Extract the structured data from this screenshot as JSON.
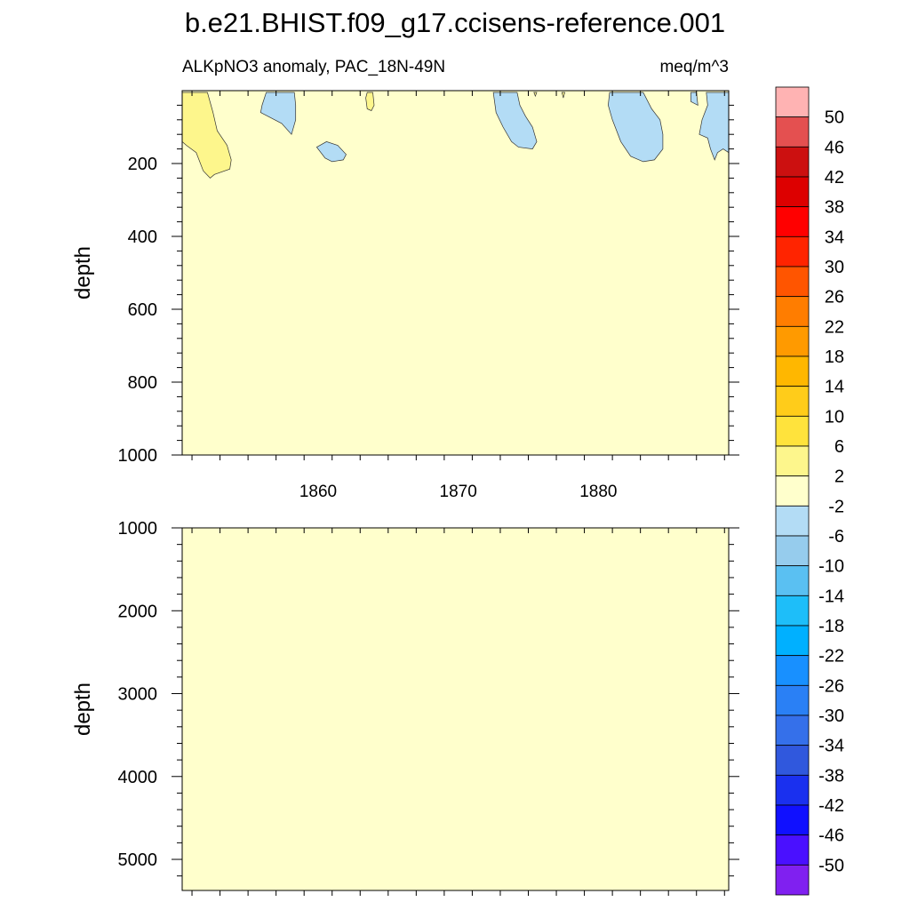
{
  "title": "b.e21.BHIST.f09_g17.ccisens-reference.001",
  "chart_data": {
    "type": "heatmap",
    "subtitle_left": "ALKpNO3 anomaly, PAC_18N-49N",
    "subtitle_right": "meq/m^3",
    "xlabel": "",
    "x_ticks": [
      "1860",
      "1870",
      "1880"
    ],
    "xlim": [
      1850.3,
      1889.3
    ],
    "background_level": "-2 to 2",
    "panels": [
      {
        "ylabel": "depth",
        "ylim": [
          0,
          1000
        ],
        "y_ticks": [
          "200",
          "400",
          "600",
          "800",
          "1000"
        ],
        "regions": [
          {
            "level": "2 to 6",
            "color": "#fdf68c",
            "points": [
              [
                1850.3,
                5
              ],
              [
                1852.1,
                5
              ],
              [
                1852.5,
                60
              ],
              [
                1852.8,
                110
              ],
              [
                1853.5,
                150
              ],
              [
                1853.8,
                190
              ],
              [
                1853.7,
                215
              ],
              [
                1852.6,
                230
              ],
              [
                1852.3,
                240
              ],
              [
                1851.8,
                220
              ],
              [
                1851.3,
                170
              ],
              [
                1850.6,
                150
              ],
              [
                1850.3,
                140
              ]
            ]
          },
          {
            "level": "2 to 6",
            "color": "#fdf68c",
            "points": [
              [
                1863.5,
                5
              ],
              [
                1863.9,
                5
              ],
              [
                1864.0,
                40
              ],
              [
                1863.8,
                55
              ],
              [
                1863.5,
                50
              ],
              [
                1863.4,
                20
              ]
            ]
          },
          {
            "level": "2 to 6",
            "color": "#fdf68c",
            "points": [
              [
                1875.4,
                5
              ],
              [
                1875.6,
                5
              ],
              [
                1875.5,
                15
              ]
            ]
          },
          {
            "level": "2 to 6",
            "color": "#fdf68c",
            "points": [
              [
                1877.4,
                5
              ],
              [
                1877.6,
                5
              ],
              [
                1877.5,
                20
              ]
            ]
          },
          {
            "level": "2 to 6",
            "color": "#fdf68c",
            "points": [
              [
                1886.8,
                5
              ],
              [
                1887.0,
                5
              ],
              [
                1886.9,
                18
              ]
            ]
          },
          {
            "level": "-6 to -2",
            "color": "#b3dcf5",
            "points": [
              [
                1856.3,
                5
              ],
              [
                1858.3,
                5
              ],
              [
                1858.4,
                40
              ],
              [
                1858.4,
                80
              ],
              [
                1858.1,
                120
              ],
              [
                1857.4,
                90
              ],
              [
                1856.4,
                70
              ],
              [
                1855.9,
                60
              ],
              [
                1856.0,
                40
              ]
            ]
          },
          {
            "level": "-6 to -2",
            "color": "#b3dcf5",
            "points": [
              [
                1859.9,
                155
              ],
              [
                1860.6,
                140
              ],
              [
                1861.4,
                150
              ],
              [
                1862.0,
                175
              ],
              [
                1861.8,
                190
              ],
              [
                1861.0,
                195
              ],
              [
                1860.5,
                185
              ]
            ]
          },
          {
            "level": "-6 to -2",
            "color": "#b3dcf5",
            "points": [
              [
                1872.5,
                5
              ],
              [
                1874.2,
                5
              ],
              [
                1874.4,
                40
              ],
              [
                1874.8,
                70
              ],
              [
                1875.3,
                100
              ],
              [
                1875.6,
                140
              ],
              [
                1875.3,
                160
              ],
              [
                1874.3,
                155
              ],
              [
                1873.8,
                140
              ],
              [
                1873.2,
                100
              ],
              [
                1872.7,
                60
              ]
            ]
          },
          {
            "level": "-6 to -2",
            "color": "#b3dcf5",
            "points": [
              [
                1880.8,
                5
              ],
              [
                1883.2,
                5
              ],
              [
                1883.8,
                50
              ],
              [
                1884.4,
                80
              ],
              [
                1884.6,
                120
              ],
              [
                1884.6,
                160
              ],
              [
                1884.0,
                190
              ],
              [
                1883.2,
                195
              ],
              [
                1882.3,
                180
              ],
              [
                1881.6,
                140
              ],
              [
                1881.0,
                80
              ],
              [
                1880.7,
                40
              ]
            ]
          },
          {
            "level": "-6 to -2",
            "color": "#b3dcf5",
            "points": [
              [
                1887.7,
                5
              ],
              [
                1889.3,
                5
              ],
              [
                1889.3,
                170
              ],
              [
                1888.9,
                160
              ],
              [
                1888.5,
                170
              ],
              [
                1888.3,
                190
              ],
              [
                1888.0,
                160
              ],
              [
                1887.8,
                130
              ],
              [
                1887.2,
                120
              ],
              [
                1887.4,
                80
              ],
              [
                1887.8,
                40
              ]
            ]
          },
          {
            "level": "-6 to -2",
            "color": "#b3dcf5",
            "points": [
              [
                1886.6,
                5
              ],
              [
                1887.0,
                5
              ],
              [
                1887.1,
                40
              ],
              [
                1886.6,
                30
              ]
            ]
          }
        ]
      },
      {
        "ylabel": "depth",
        "ylim": [
          1000,
          5375
        ],
        "y_ticks": [
          "1000",
          "2000",
          "3000",
          "4000",
          "5000"
        ],
        "regions": []
      }
    ],
    "colorbar": {
      "labels": [
        "50",
        "46",
        "42",
        "38",
        "34",
        "30",
        "26",
        "22",
        "18",
        "14",
        "10",
        "6",
        "2",
        "-2",
        "-6",
        "-10",
        "-14",
        "-18",
        "-22",
        "-26",
        "-30",
        "-34",
        "-38",
        "-42",
        "-46",
        "-50"
      ],
      "colors": [
        "#ffb3b3",
        "#e45050",
        "#cc1010",
        "#dd0000",
        "#ff0000",
        "#ff2400",
        "#ff5500",
        "#ff7d00",
        "#ff9a00",
        "#ffb700",
        "#ffcc1a",
        "#ffe33c",
        "#fdf68c",
        "#ffffcc",
        "#b3dcf5",
        "#96cced",
        "#5ac0f2",
        "#1ebef9",
        "#00b0ff",
        "#1890ff",
        "#2a80f5",
        "#3570ea",
        "#3058dd",
        "#1a30ef",
        "#1010ff",
        "#4a10ff",
        "#8020f0"
      ]
    }
  }
}
